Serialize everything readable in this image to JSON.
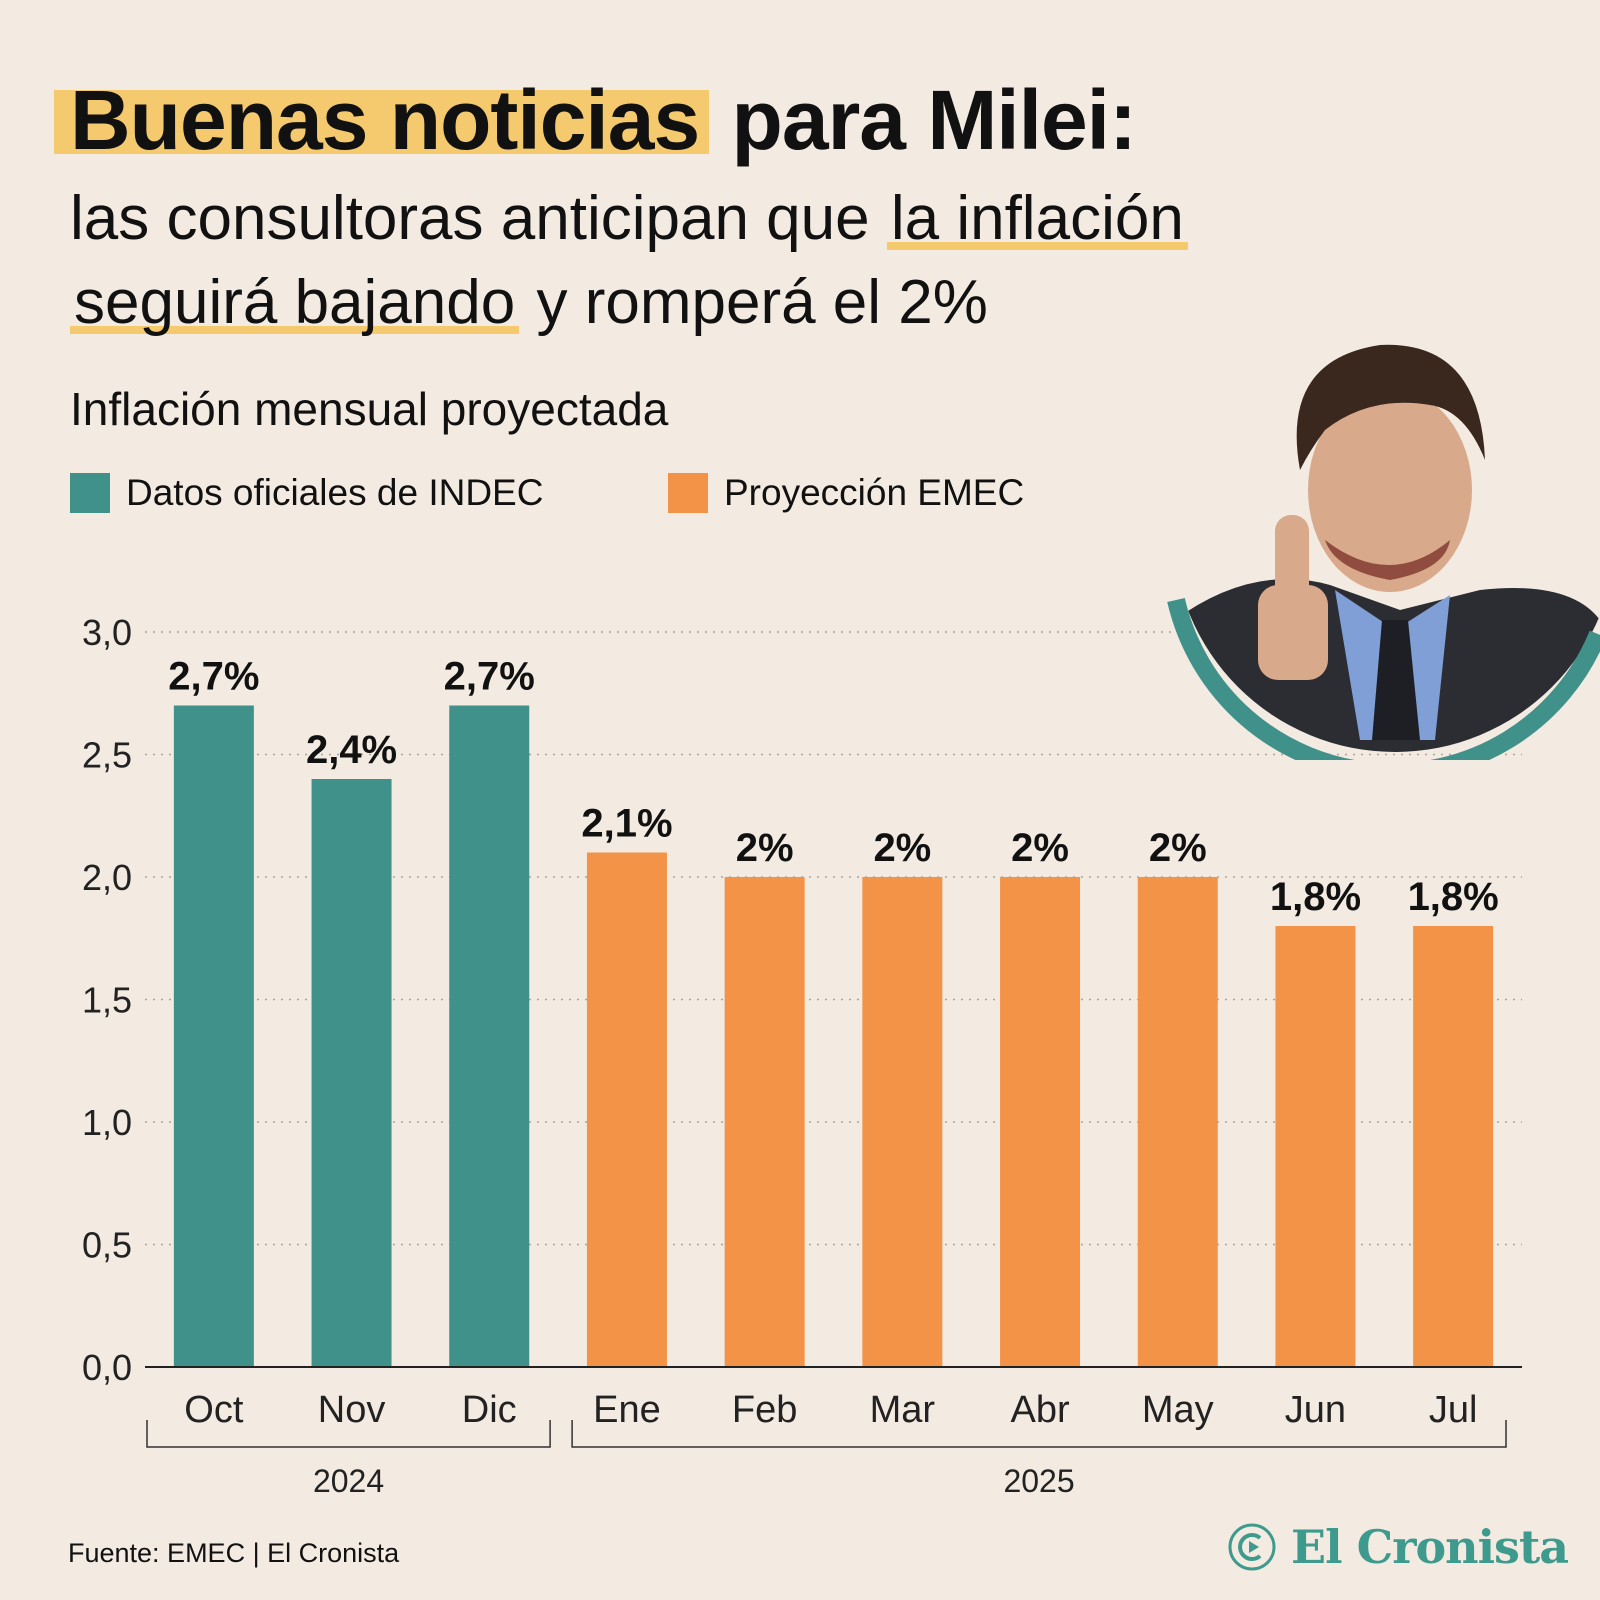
{
  "title": {
    "highlight": "Buenas noticias",
    "rest": " para Milei:",
    "line2_plain": "las consultoras anticipan que ",
    "line2_underlined": "la inflación",
    "line3_underlined": "seguirá bajando",
    "line3_plain": " y romperá el 2%"
  },
  "colors": {
    "indec": "#3f918a",
    "emec": "#f39348",
    "highlight": "#f5c96d",
    "background": "#f3ebe2",
    "brand": "#3e9a8c"
  },
  "footer": {
    "source": "Fuente: EMEC | El Cronista",
    "brand": "El Cronista"
  },
  "photo": {
    "icon": "person-thumbs-up-photo"
  },
  "chart_data": {
    "type": "bar",
    "title": "Inflación mensual proyectada",
    "categories": [
      "Oct",
      "Nov",
      "Dic",
      "Ene",
      "Feb",
      "Mar",
      "Abr",
      "May",
      "Jun",
      "Jul"
    ],
    "series": [
      {
        "name": "Datos oficiales de INDEC",
        "values": [
          2.7,
          2.4,
          2.7,
          null,
          null,
          null,
          null,
          null,
          null,
          null
        ]
      },
      {
        "name": "Proyección EMEC",
        "values": [
          null,
          null,
          null,
          2.1,
          2.0,
          2.0,
          2.0,
          2.0,
          1.8,
          1.8
        ]
      }
    ],
    "data_labels": [
      "2,7%",
      "2,4%",
      "2,7%",
      "2,1%",
      "2%",
      "2%",
      "2%",
      "2%",
      "1,8%",
      "1,8%"
    ],
    "groups": [
      {
        "label": "2024",
        "categories": [
          "Oct",
          "Nov",
          "Dic"
        ]
      },
      {
        "label": "2025",
        "categories": [
          "Ene",
          "Feb",
          "Mar",
          "Abr",
          "May",
          "Jun",
          "Jul"
        ]
      }
    ],
    "yticks": [
      "0,0",
      "0,5",
      "1,0",
      "1,5",
      "2,0",
      "2,5",
      "3,0"
    ],
    "ylim": [
      0,
      3.0
    ],
    "grid": true,
    "legend_position": "top-left"
  }
}
